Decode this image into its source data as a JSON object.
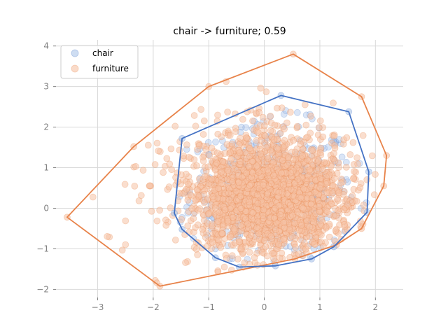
{
  "chart_data": {
    "type": "scatter",
    "title": "chair -> furniture; 0.59",
    "xlabel": "",
    "ylabel": "",
    "xlim": [
      -3.75,
      2.5
    ],
    "ylim": [
      -2.2,
      4.15
    ],
    "x_ticks": [
      -3,
      -2,
      -1,
      0,
      1,
      2
    ],
    "y_ticks": [
      -2,
      -1,
      0,
      1,
      2,
      3,
      4
    ],
    "x_tick_labels": [
      "−3",
      "−2",
      "−1",
      "0",
      "1",
      "2"
    ],
    "y_tick_labels": [
      "−2",
      "−1",
      "0",
      "1",
      "2",
      "3",
      "4"
    ],
    "grid": true,
    "legend_position": "top-left",
    "series": [
      {
        "name": "chair",
        "color": "#4472c4",
        "marker_color": "#aec6ea",
        "hull": [
          [
            0.3,
            2.78
          ],
          [
            1.52,
            2.38
          ],
          [
            1.88,
            0.9
          ],
          [
            1.85,
            -0.1
          ],
          [
            1.25,
            -0.95
          ],
          [
            0.85,
            -1.25
          ],
          [
            0.2,
            -1.42
          ],
          [
            -0.45,
            -1.45
          ],
          [
            -0.88,
            -1.22
          ],
          [
            -1.48,
            -0.52
          ],
          [
            -1.62,
            -0.12
          ],
          [
            -1.48,
            1.72
          ]
        ]
      },
      {
        "name": "furniture",
        "color": "#e8834a",
        "marker_color": "#f6c3a5",
        "hull": [
          [
            0.52,
            3.8
          ],
          [
            1.75,
            2.75
          ],
          [
            2.2,
            1.3
          ],
          [
            2.15,
            0.55
          ],
          [
            1.75,
            -0.5
          ],
          [
            1.3,
            -0.9
          ],
          [
            0.55,
            -1.25
          ],
          [
            -1.88,
            -1.92
          ],
          [
            -3.55,
            -0.22
          ],
          [
            -2.35,
            1.52
          ],
          [
            -1.0,
            3.0
          ]
        ]
      }
    ]
  }
}
